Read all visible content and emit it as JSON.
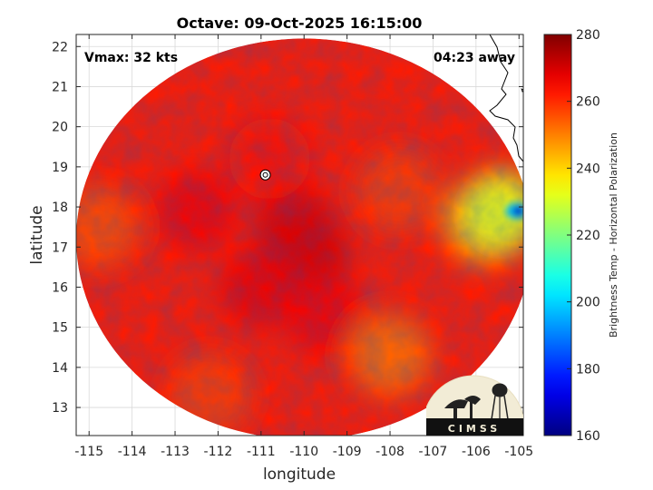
{
  "chart_data": {
    "type": "heatmap",
    "title": "Octave: 09-Oct-2025 16:15:00",
    "xlabel": "longitude",
    "ylabel": "latitude",
    "xlim": [
      -115.3,
      -104.9
    ],
    "ylim": [
      12.3,
      22.3
    ],
    "x_ticks": [
      -115,
      -114,
      -113,
      -112,
      -111,
      -110,
      -109,
      -108,
      -107,
      -106,
      -105
    ],
    "y_ticks": [
      13,
      14,
      15,
      16,
      17,
      18,
      19,
      20,
      21,
      22
    ],
    "grid": true,
    "annotations": {
      "vmax": "Vmax: 32 kts",
      "time_away": "04:23 away"
    },
    "storm_center": {
      "lon": -110.9,
      "lat": 18.8
    },
    "colorbar": {
      "label": "Brightness Temp - Horizontal Polarization",
      "min": 160,
      "max": 280,
      "ticks": [
        160,
        180,
        200,
        220,
        240,
        260,
        280
      ],
      "colormap": "jet"
    },
    "swath": {
      "center_lon": -110.0,
      "center_lat": 17.2,
      "radius_lon": 5.3,
      "radius_lat": 5.0,
      "background_value": 262,
      "features": [
        {
          "lon": -109.9,
          "lat": 16.8,
          "value": 270
        },
        {
          "lon": -110.2,
          "lat": 17.5,
          "value": 269
        },
        {
          "lon": -111.0,
          "lat": 16.0,
          "value": 267
        },
        {
          "lon": -109.5,
          "lat": 15.3,
          "value": 266
        },
        {
          "lon": -112.5,
          "lat": 17.9,
          "value": 266
        },
        {
          "lon": -107.8,
          "lat": 18.4,
          "value": 258
        },
        {
          "lon": -108.0,
          "lat": 14.3,
          "value": 252
        },
        {
          "lon": -105.8,
          "lat": 17.6,
          "value": 244
        },
        {
          "lon": -105.4,
          "lat": 17.9,
          "value": 232
        },
        {
          "lon": -114.8,
          "lat": 17.5,
          "value": 256
        },
        {
          "lon": -112.2,
          "lat": 13.3,
          "value": 258
        },
        {
          "lon": -110.8,
          "lat": 19.2,
          "value": 264
        }
      ],
      "land_hot_spot": {
        "lon": -105.1,
        "lat": 17.9,
        "value": 168
      }
    },
    "logo": "CIMSS"
  },
  "colors": {
    "grid": "#d9d9d9",
    "axes": "#262626",
    "coastline": "#000000"
  }
}
